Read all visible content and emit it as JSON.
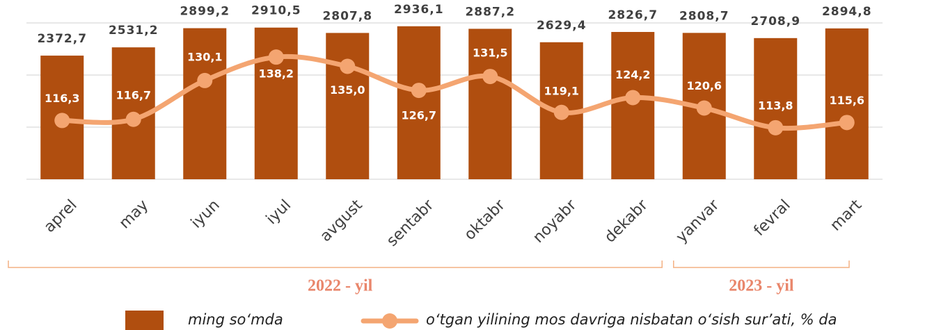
{
  "chart_data": {
    "type": "bar-line",
    "categories": [
      "aprel",
      "may",
      "iyun",
      "iyul",
      "avgust",
      "sentabr",
      "oktabr",
      "noyabr",
      "dekabr",
      "yanvar",
      "fevral",
      "mart"
    ],
    "series": [
      {
        "name": "ming so‘mda",
        "type": "bar",
        "color": "#b04e0f",
        "values": [
          2372.7,
          2531.2,
          2899.2,
          2910.5,
          2807.8,
          2936.1,
          2887.2,
          2629.4,
          2826.7,
          2808.7,
          2708.9,
          2894.8
        ],
        "value_labels": [
          "2372,7",
          "2531,2",
          "2899,2",
          "2910,5",
          "2807,8",
          "2936,1",
          "2887,2",
          "2629,4",
          "2826,7",
          "2808,7",
          "2708,9",
          "2894,8"
        ]
      },
      {
        "name": "o‘tgan yilining mos davriga nisbatan o‘sish sur’ati, % da",
        "type": "line",
        "axis": "y2",
        "color": "#f4a571",
        "values": [
          116.3,
          116.7,
          130.1,
          138.2,
          135.0,
          126.7,
          131.5,
          119.1,
          124.2,
          120.6,
          113.8,
          115.6
        ],
        "value_labels": [
          "116,3",
          "116,7",
          "130,1",
          "138,2",
          "135,0",
          "126,7",
          "131,5",
          "119,1",
          "124,2",
          "120,6",
          "113,8",
          "115,6"
        ]
      }
    ],
    "ylim": [
      0,
      3000
    ],
    "yticks": [
      0,
      1000,
      2000,
      3000
    ],
    "grid": true,
    "y2lim": [
      96,
      150
    ],
    "groups": [
      {
        "label": "2022 - yil",
        "from": 0,
        "to": 8
      },
      {
        "label": "2023 - yil",
        "from": 9,
        "to": 11
      }
    ]
  }
}
